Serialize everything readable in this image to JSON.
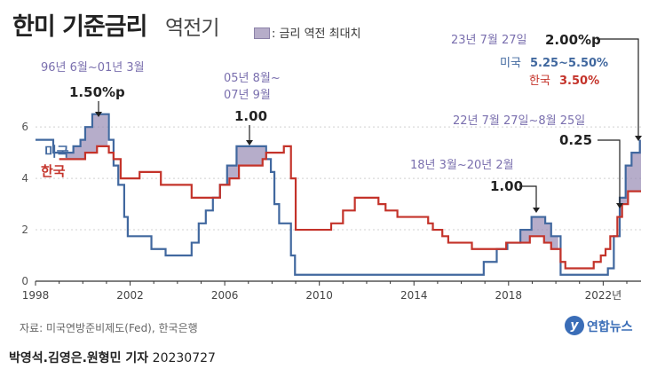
{
  "title": "한미 기준금리",
  "subtitle": "역전기",
  "legend_label": ": 금리 역전 최대치",
  "source": "자료: 미국연방준비제도(Fed), 한국은행",
  "logo_text": "연합뉴스",
  "byline_name": "박영석.김영은.원형민 기자",
  "byline_date": "20230727",
  "colors": {
    "us": "#41689f",
    "kr": "#c4332a",
    "gap_fill": "#9d92b8",
    "annotation": "#7a6fae",
    "grid": "#d0d0d0",
    "axis": "#333333"
  },
  "chart_data": {
    "type": "line",
    "xlim": [
      1998,
      2023.6
    ],
    "ylim": [
      0,
      6.8
    ],
    "xticks": [
      1998,
      2002,
      2006,
      2010,
      2014,
      2018,
      2022
    ],
    "xtick_labels": [
      "1998",
      "2002",
      "2006",
      "2010",
      "2014",
      "2018",
      "2022년"
    ],
    "yticks": [
      0,
      2,
      4,
      6
    ],
    "ytick_labels": [
      "0",
      "2",
      "4",
      "6"
    ],
    "grid": true,
    "series": [
      {
        "name": "미국",
        "color": "#41689f",
        "points": [
          [
            1998,
            5.5
          ],
          [
            1998.75,
            5.0
          ],
          [
            1999.5,
            5.0
          ],
          [
            1999.6,
            5.25
          ],
          [
            1999.9,
            5.5
          ],
          [
            2000.1,
            6.0
          ],
          [
            2000.4,
            6.5
          ],
          [
            2001.0,
            6.5
          ],
          [
            2001.1,
            5.5
          ],
          [
            2001.3,
            4.5
          ],
          [
            2001.5,
            3.75
          ],
          [
            2001.75,
            2.5
          ],
          [
            2001.9,
            1.75
          ],
          [
            2002.9,
            1.25
          ],
          [
            2003.5,
            1.0
          ],
          [
            2004.5,
            1.0
          ],
          [
            2004.6,
            1.5
          ],
          [
            2004.9,
            2.25
          ],
          [
            2005.2,
            2.75
          ],
          [
            2005.5,
            3.25
          ],
          [
            2005.8,
            3.75
          ],
          [
            2006.1,
            4.5
          ],
          [
            2006.5,
            5.25
          ],
          [
            2007.6,
            5.25
          ],
          [
            2007.75,
            4.75
          ],
          [
            2007.95,
            4.25
          ],
          [
            2008.1,
            3.0
          ],
          [
            2008.3,
            2.25
          ],
          [
            2008.8,
            1.0
          ],
          [
            2008.97,
            0.25
          ],
          [
            2015.95,
            0.25
          ],
          [
            2016.95,
            0.75
          ],
          [
            2017.5,
            1.25
          ],
          [
            2017.95,
            1.5
          ],
          [
            2018.5,
            2.0
          ],
          [
            2018.97,
            2.5
          ],
          [
            2019.55,
            2.25
          ],
          [
            2019.8,
            1.75
          ],
          [
            2020.2,
            0.25
          ],
          [
            2022.2,
            0.5
          ],
          [
            2022.45,
            1.75
          ],
          [
            2022.7,
            3.25
          ],
          [
            2022.95,
            4.5
          ],
          [
            2023.2,
            5.0
          ],
          [
            2023.55,
            5.5
          ]
        ]
      },
      {
        "name": "한국",
        "color": "#c4332a",
        "points": [
          [
            1999,
            4.75
          ],
          [
            1999.6,
            4.75
          ],
          [
            2000.1,
            5.0
          ],
          [
            2000.6,
            5.25
          ],
          [
            2001.1,
            5.0
          ],
          [
            2001.3,
            4.75
          ],
          [
            2001.6,
            4.0
          ],
          [
            2002.4,
            4.25
          ],
          [
            2003.3,
            3.75
          ],
          [
            2004.6,
            3.25
          ],
          [
            2005.8,
            3.75
          ],
          [
            2006.2,
            4.0
          ],
          [
            2006.6,
            4.5
          ],
          [
            2007.6,
            4.75
          ],
          [
            2007.75,
            5.0
          ],
          [
            2008.5,
            5.25
          ],
          [
            2008.8,
            4.0
          ],
          [
            2009.0,
            2.0
          ],
          [
            2010.5,
            2.25
          ],
          [
            2011.0,
            2.75
          ],
          [
            2011.5,
            3.25
          ],
          [
            2012.5,
            3.0
          ],
          [
            2012.8,
            2.75
          ],
          [
            2013.3,
            2.5
          ],
          [
            2014.6,
            2.25
          ],
          [
            2014.8,
            2.0
          ],
          [
            2015.2,
            1.75
          ],
          [
            2015.45,
            1.5
          ],
          [
            2016.45,
            1.25
          ],
          [
            2017.9,
            1.5
          ],
          [
            2018.9,
            1.75
          ],
          [
            2019.5,
            1.5
          ],
          [
            2019.8,
            1.25
          ],
          [
            2020.2,
            0.75
          ],
          [
            2020.4,
            0.5
          ],
          [
            2021.6,
            0.75
          ],
          [
            2021.9,
            1.0
          ],
          [
            2022.1,
            1.25
          ],
          [
            2022.3,
            1.75
          ],
          [
            2022.6,
            2.5
          ],
          [
            2022.8,
            3.0
          ],
          [
            2023.05,
            3.5
          ],
          [
            2023.6,
            3.5
          ]
        ]
      }
    ],
    "gap_regions": [
      {
        "from": 1999.3,
        "to": 2001.05
      },
      {
        "from": 2005.6,
        "to": 2007.7
      },
      {
        "from": 2018.2,
        "to": 2020.1
      },
      {
        "from": 2022.3,
        "to": 2023.6
      }
    ],
    "annotations": [
      {
        "period": "96년 6월~01년 3월",
        "value": "1.50%p"
      },
      {
        "period_line1": "05년 8월~",
        "period_line2": "07년 9월",
        "value": "1.00"
      },
      {
        "period": "18년 3월~20년 2월",
        "value": "1.00"
      },
      {
        "period": "22년 7월 27일~8월 25일",
        "value": "0.25"
      },
      {
        "period": "23년 7월 27일",
        "value": "2.00%p"
      }
    ],
    "current_rates": {
      "us_label": "미국",
      "us_value": "5.25~5.50%",
      "kr_label": "한국",
      "kr_value": "3.50%"
    }
  }
}
